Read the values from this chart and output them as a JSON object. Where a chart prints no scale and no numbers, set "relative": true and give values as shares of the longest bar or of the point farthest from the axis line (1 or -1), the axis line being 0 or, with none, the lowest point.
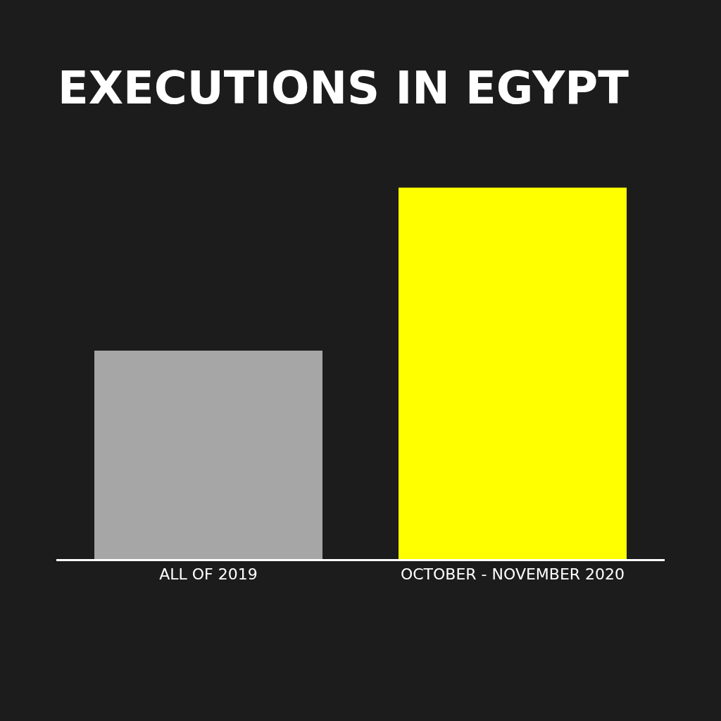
{
  "chart_data": {
    "type": "bar",
    "title": "EXECUTIONS IN EGYPT",
    "relative": true,
    "categories": [
      "ALL OF 2019",
      "OCTOBER - NOVEMBER 2020"
    ],
    "values": [
      0.561,
      1
    ],
    "colors": [
      "#a6a6a6",
      "#ffff00"
    ]
  }
}
